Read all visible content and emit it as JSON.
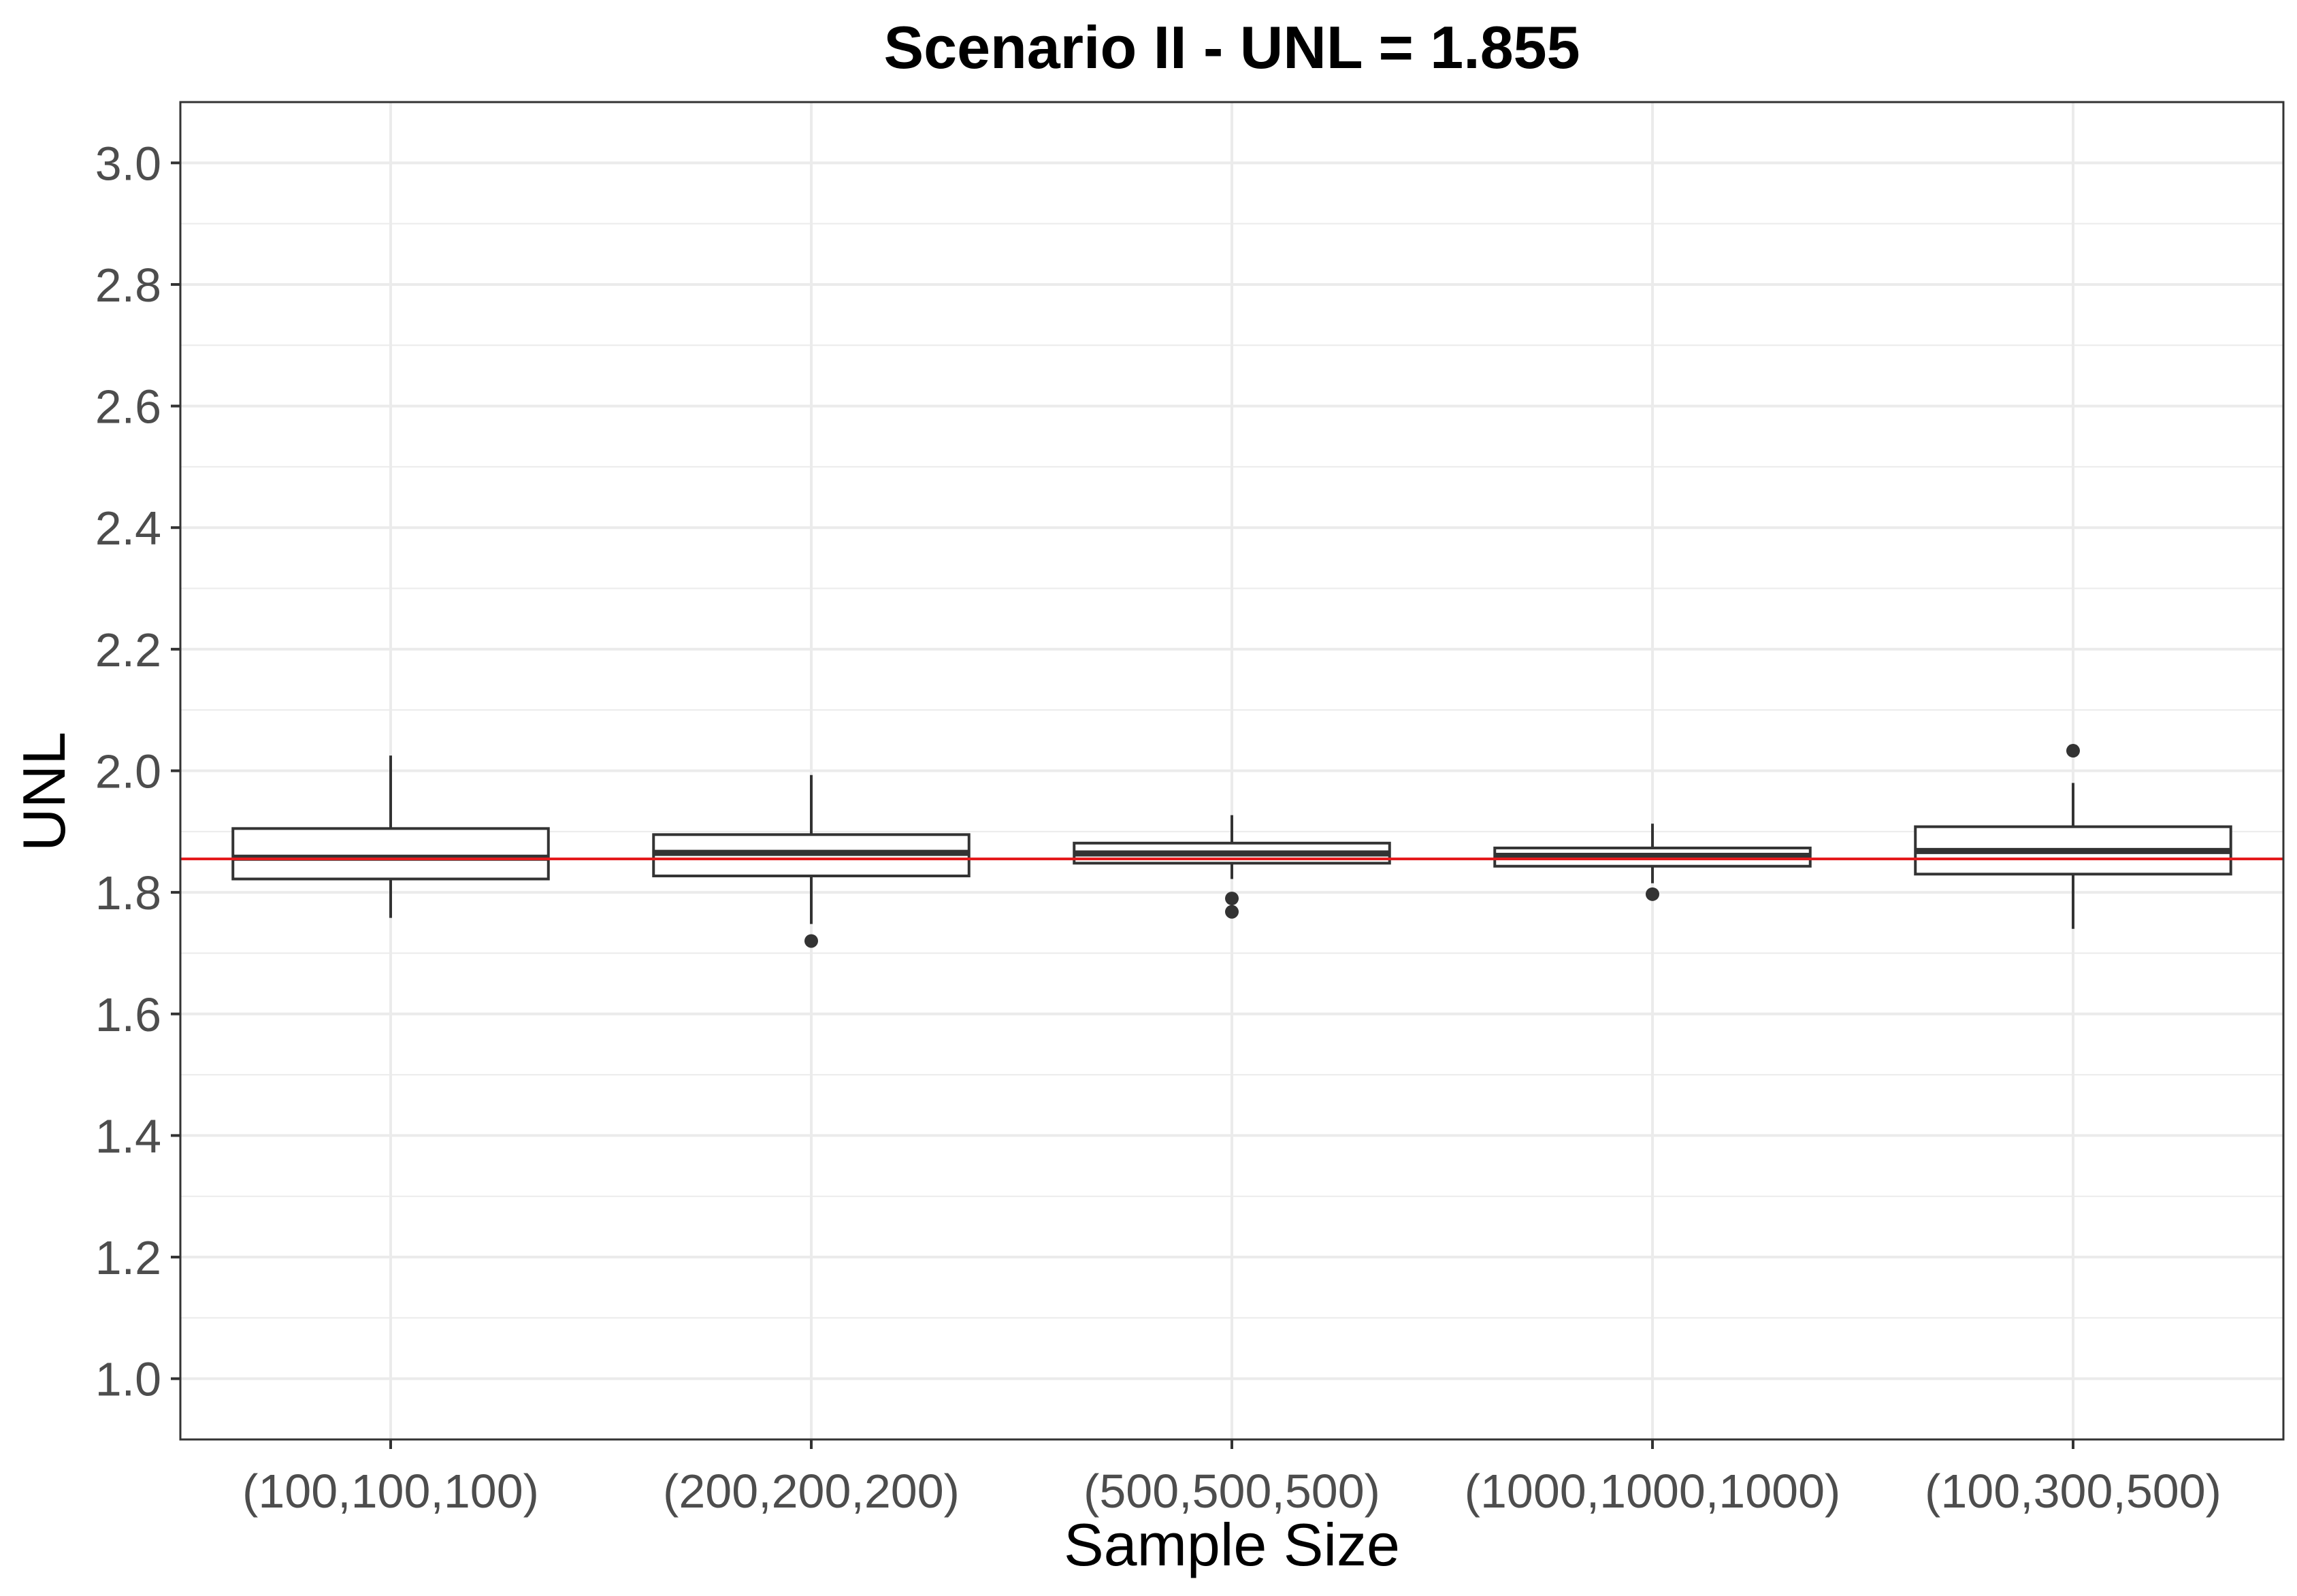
{
  "chart_data": {
    "type": "boxplot",
    "title": "Scenario II - UNL = 1.855",
    "xlabel": "Sample Size",
    "ylabel": "UNL",
    "ylim": [
      0.9,
      3.1
    ],
    "yticks": [
      "1.0",
      "1.2",
      "1.4",
      "1.6",
      "1.8",
      "2.0",
      "2.2",
      "2.4",
      "2.6",
      "2.8",
      "3.0"
    ],
    "grid": true,
    "reference_line": {
      "y": 1.855,
      "color": "#e41a1c"
    },
    "categories": [
      "(100,100,100)",
      "(200,200,200)",
      "(500,500,500)",
      "(1000,1000,1000)",
      "(100,300,500)"
    ],
    "boxes": [
      {
        "whisker_low": 1.758,
        "q1": 1.822,
        "median": 1.857,
        "q3": 1.905,
        "whisker_high": 2.025,
        "outliers": []
      },
      {
        "whisker_low": 1.748,
        "q1": 1.827,
        "median": 1.865,
        "q3": 1.895,
        "whisker_high": 1.993,
        "outliers": [
          1.72
        ]
      },
      {
        "whisker_low": 1.822,
        "q1": 1.848,
        "median": 1.864,
        "q3": 1.881,
        "whisker_high": 1.927,
        "outliers": [
          1.79,
          1.768
        ]
      },
      {
        "whisker_low": 1.815,
        "q1": 1.843,
        "median": 1.86,
        "q3": 1.873,
        "whisker_high": 1.913,
        "outliers": [
          1.797
        ]
      },
      {
        "whisker_low": 1.74,
        "q1": 1.83,
        "median": 1.868,
        "q3": 1.908,
        "whisker_high": 1.98,
        "outliers": [
          2.033
        ]
      }
    ],
    "colors": {
      "box_line": "#333333",
      "box_fill": "#ffffff",
      "grid": "#ebebeb",
      "panel_border": "#333333"
    }
  }
}
